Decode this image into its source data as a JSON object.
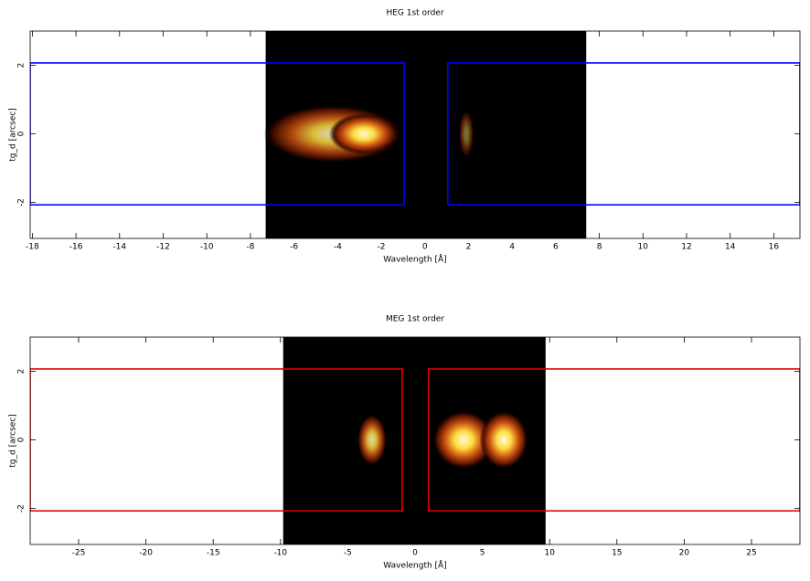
{
  "chart_data": [
    {
      "type": "heatmap",
      "title": "HEG 1st order",
      "xlabel": "Wavelength [Å]",
      "ylabel": "tg_d [arcsec]",
      "xlim": [
        -18.1,
        17.2
      ],
      "ylim": [
        -3.05,
        3.0
      ],
      "xticks": [
        -18,
        -16,
        -14,
        -12,
        -10,
        -8,
        -6,
        -4,
        -2,
        0,
        2,
        4,
        6,
        8,
        10,
        12,
        14,
        16
      ],
      "yticks": [
        -2,
        0,
        2
      ],
      "image_xlim": [
        -7.3,
        7.4
      ],
      "image_ylim": [
        -3.05,
        3.0
      ],
      "region_color": "#0000ff",
      "regions": [
        {
          "xlim": [
            -18.1,
            -0.95
          ],
          "ylim": [
            -2.07,
            2.07
          ]
        },
        {
          "xlim": [
            1.05,
            17.2
          ],
          "ylim": [
            -2.07,
            2.07
          ]
        }
      ],
      "emission": [
        {
          "x": -4.2,
          "y": 0,
          "rx": 3.2,
          "ry": 0.85,
          "intensity": 0.85
        },
        {
          "x": -2.8,
          "y": 0,
          "rx": 1.6,
          "ry": 0.6,
          "intensity": 1.0
        },
        {
          "x": 1.9,
          "y": 0,
          "rx": 0.35,
          "ry": 0.7,
          "intensity": 0.45
        }
      ]
    },
    {
      "type": "heatmap",
      "title": "MEG 1st order",
      "xlabel": "Wavelength [Å]",
      "ylabel": "tg_d [arcsec]",
      "xlim": [
        -28.6,
        28.6
      ],
      "ylim": [
        -3.05,
        3.0
      ],
      "xticks": [
        -25,
        -20,
        -15,
        -10,
        -5,
        0,
        5,
        10,
        15,
        20,
        25
      ],
      "yticks": [
        -2,
        0,
        2
      ],
      "image_xlim": [
        -9.8,
        9.7
      ],
      "image_ylim": [
        -3.05,
        3.0
      ],
      "region_color": "#dd0000",
      "regions": [
        {
          "xlim": [
            -28.6,
            -0.95
          ],
          "ylim": [
            -2.07,
            2.07
          ]
        },
        {
          "xlim": [
            1.0,
            28.6
          ],
          "ylim": [
            -2.07,
            2.07
          ]
        }
      ],
      "emission": [
        {
          "x": -3.2,
          "y": 0,
          "rx": 1.1,
          "ry": 0.75,
          "intensity": 0.85
        },
        {
          "x": 3.6,
          "y": 0,
          "rx": 2.3,
          "ry": 0.85,
          "intensity": 1.0
        },
        {
          "x": 6.6,
          "y": 0,
          "rx": 1.8,
          "ry": 0.85,
          "intensity": 1.0
        }
      ]
    }
  ]
}
